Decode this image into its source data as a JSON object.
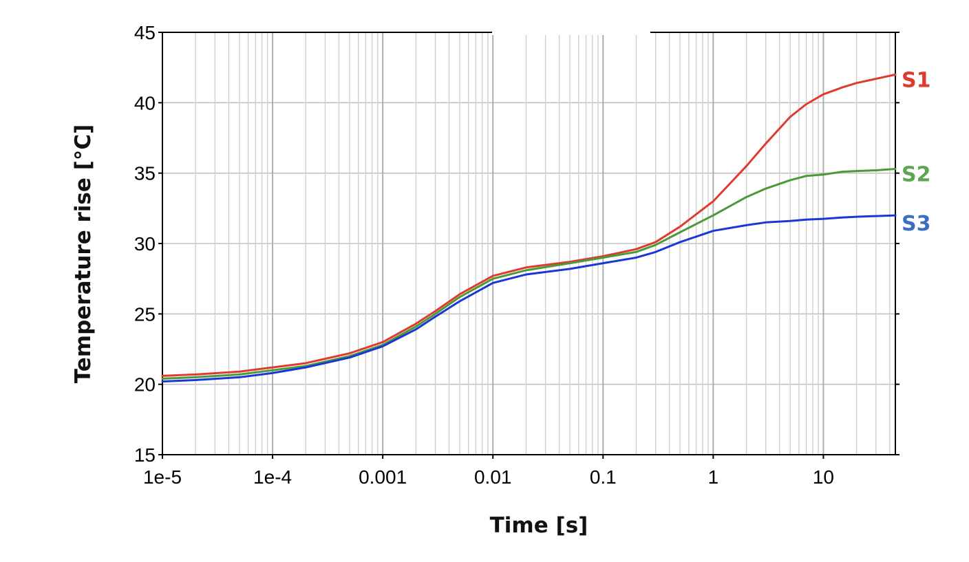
{
  "chart_data": {
    "type": "line",
    "xlabel": "Time [s]",
    "ylabel": "Temperature rise [°C]",
    "x_scale": "log",
    "xlim": [
      1e-05,
      45
    ],
    "ylim": [
      15,
      45
    ],
    "grid": true,
    "x_tick_values": [
      1e-05,
      0.0001,
      0.001,
      0.01,
      0.1,
      1,
      10
    ],
    "x_tick_labels": [
      "1e-5",
      "1e-4",
      "0.001",
      "0.01",
      "0.1",
      "1",
      "10"
    ],
    "y_tick_values": [
      15,
      20,
      25,
      30,
      35,
      40,
      45
    ],
    "y_tick_labels": [
      "15",
      "20",
      "25",
      "30",
      "35",
      "40",
      "45"
    ],
    "legend_placement": "right, at line ends",
    "x": [
      1e-05,
      2e-05,
      5e-05,
      0.0001,
      0.0002,
      0.0005,
      0.001,
      0.002,
      0.003,
      0.005,
      0.01,
      0.02,
      0.05,
      0.1,
      0.2,
      0.3,
      0.5,
      1,
      2,
      3,
      5,
      7,
      10,
      15,
      20,
      30,
      45
    ],
    "series": [
      {
        "name": "S1",
        "color": "#e03a2e",
        "values": [
          20.6,
          20.7,
          20.9,
          21.2,
          21.5,
          22.2,
          23.0,
          24.3,
          25.2,
          26.4,
          27.7,
          28.3,
          28.7,
          29.1,
          29.6,
          30.1,
          31.2,
          33.0,
          35.5,
          37.1,
          39.0,
          39.9,
          40.6,
          41.1,
          41.4,
          41.7,
          42.0
        ]
      },
      {
        "name": "S2",
        "color": "#4a9a3a",
        "values": [
          20.4,
          20.5,
          20.7,
          21.0,
          21.3,
          22.0,
          22.8,
          24.1,
          25.0,
          26.2,
          27.5,
          28.1,
          28.6,
          29.0,
          29.4,
          29.9,
          30.8,
          32.0,
          33.3,
          33.9,
          34.5,
          34.8,
          34.9,
          35.1,
          35.15,
          35.2,
          35.3
        ]
      },
      {
        "name": "S3",
        "color": "#1a35d8",
        "values": [
          20.2,
          20.3,
          20.5,
          20.8,
          21.2,
          21.9,
          22.7,
          23.9,
          24.8,
          25.9,
          27.2,
          27.8,
          28.2,
          28.6,
          29.0,
          29.4,
          30.1,
          30.9,
          31.3,
          31.5,
          31.6,
          31.7,
          31.75,
          31.85,
          31.9,
          31.95,
          32.0
        ]
      }
    ],
    "label_colors": {
      "S1": "#e03a2e",
      "S2": "#5aa74f",
      "S3": "#3d6fbf"
    }
  }
}
